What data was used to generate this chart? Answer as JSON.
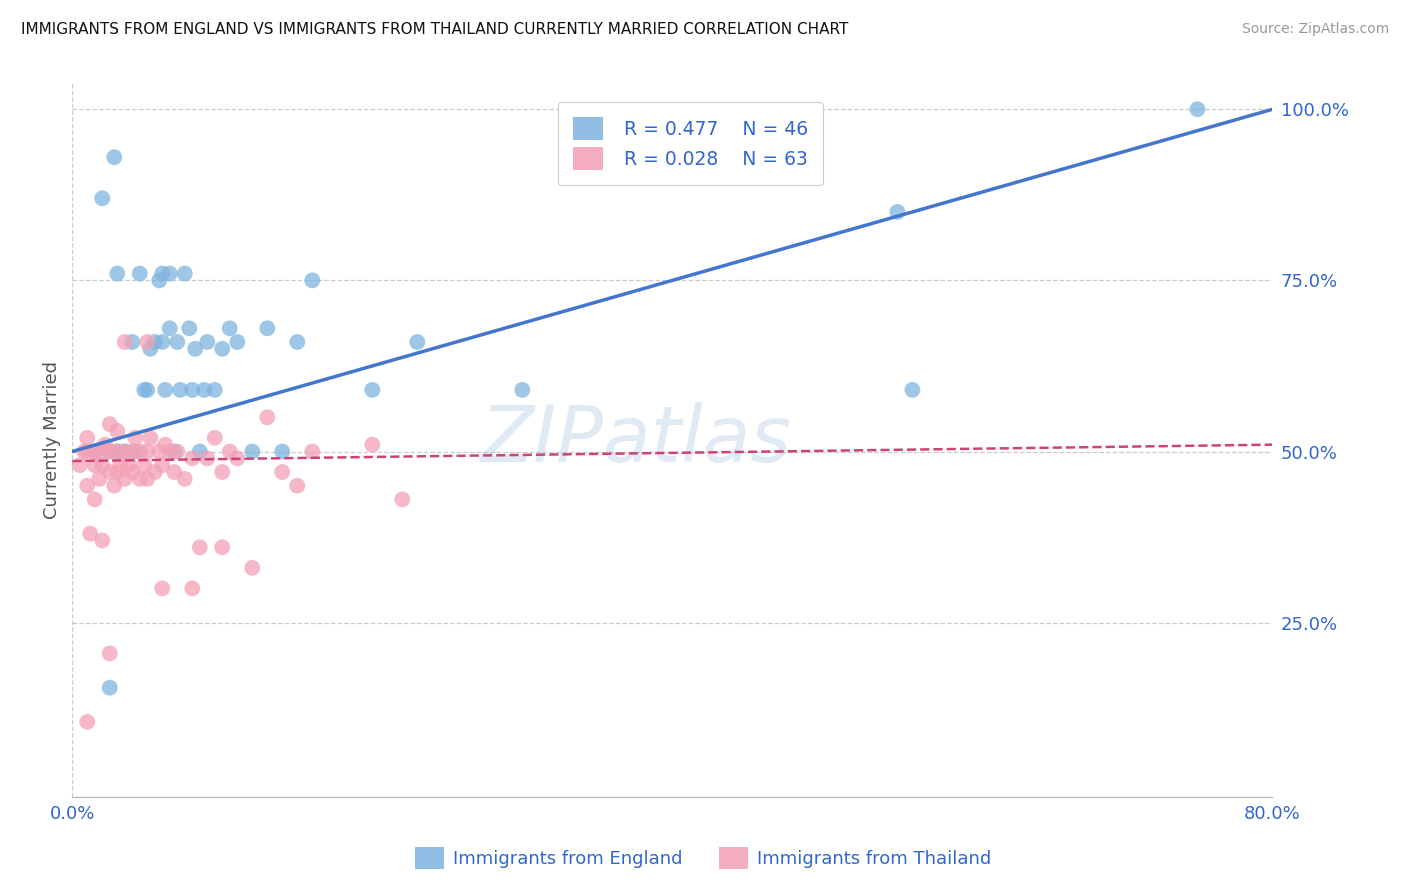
{
  "title": "IMMIGRANTS FROM ENGLAND VS IMMIGRANTS FROM THAILAND CURRENTLY MARRIED CORRELATION CHART",
  "source": "Source: ZipAtlas.com",
  "ylabel": "Currently Married",
  "legend_england_label": "Immigrants from England",
  "legend_thailand_label": "Immigrants from Thailand",
  "legend_england_R": "R = 0.477",
  "legend_england_N": "N = 46",
  "legend_thailand_R": "R = 0.028",
  "legend_thailand_N": "N = 63",
  "england_color": "#7EB3E0",
  "thailand_color": "#F4A0B5",
  "england_line_color": "#4477CC",
  "thailand_line_color": "#CC4477",
  "watermark": "ZIPatlas",
  "xlim": [
    0.0,
    0.8
  ],
  "ylim": [
    0.0,
    1.04
  ],
  "england_scatter_x": [
    0.015,
    0.02,
    0.025,
    0.028,
    0.03,
    0.03,
    0.035,
    0.04,
    0.042,
    0.045,
    0.048,
    0.05,
    0.052,
    0.055,
    0.058,
    0.06,
    0.06,
    0.062,
    0.065,
    0.065,
    0.068,
    0.07,
    0.072,
    0.075,
    0.078,
    0.08,
    0.082,
    0.085,
    0.088,
    0.09,
    0.095,
    0.1,
    0.105,
    0.11,
    0.12,
    0.13,
    0.14,
    0.15,
    0.16,
    0.2,
    0.23,
    0.3,
    0.55,
    0.56,
    0.75,
    0.025
  ],
  "england_scatter_y": [
    0.5,
    0.87,
    0.5,
    0.93,
    0.76,
    0.5,
    0.5,
    0.66,
    0.5,
    0.76,
    0.59,
    0.59,
    0.65,
    0.66,
    0.75,
    0.66,
    0.76,
    0.59,
    0.68,
    0.76,
    0.5,
    0.66,
    0.59,
    0.76,
    0.68,
    0.59,
    0.65,
    0.5,
    0.59,
    0.66,
    0.59,
    0.65,
    0.68,
    0.66,
    0.5,
    0.68,
    0.5,
    0.66,
    0.75,
    0.59,
    0.66,
    0.59,
    0.85,
    0.59,
    1.0,
    0.155
  ],
  "thailand_scatter_x": [
    0.005,
    0.008,
    0.01,
    0.01,
    0.01,
    0.012,
    0.015,
    0.015,
    0.015,
    0.018,
    0.02,
    0.02,
    0.02,
    0.022,
    0.025,
    0.025,
    0.025,
    0.028,
    0.03,
    0.03,
    0.03,
    0.032,
    0.035,
    0.035,
    0.038,
    0.04,
    0.04,
    0.042,
    0.045,
    0.045,
    0.048,
    0.05,
    0.05,
    0.052,
    0.055,
    0.058,
    0.06,
    0.062,
    0.065,
    0.068,
    0.07,
    0.075,
    0.08,
    0.085,
    0.09,
    0.095,
    0.1,
    0.105,
    0.11,
    0.12,
    0.13,
    0.14,
    0.15,
    0.16,
    0.2,
    0.22,
    0.01,
    0.025,
    0.035,
    0.05,
    0.06,
    0.08,
    0.1
  ],
  "thailand_scatter_y": [
    0.48,
    0.5,
    0.5,
    0.52,
    0.45,
    0.38,
    0.48,
    0.5,
    0.43,
    0.46,
    0.48,
    0.5,
    0.37,
    0.51,
    0.47,
    0.5,
    0.54,
    0.45,
    0.47,
    0.5,
    0.53,
    0.48,
    0.46,
    0.5,
    0.48,
    0.47,
    0.5,
    0.52,
    0.46,
    0.5,
    0.48,
    0.46,
    0.5,
    0.52,
    0.47,
    0.5,
    0.48,
    0.51,
    0.5,
    0.47,
    0.5,
    0.46,
    0.49,
    0.36,
    0.49,
    0.52,
    0.47,
    0.5,
    0.49,
    0.33,
    0.55,
    0.47,
    0.45,
    0.5,
    0.51,
    0.43,
    0.105,
    0.205,
    0.66,
    0.66,
    0.3,
    0.3,
    0.36
  ],
  "eng_trendline_x0": 0.0,
  "eng_trendline_y0": 0.5,
  "eng_trendline_x1": 0.8,
  "eng_trendline_y1": 1.0,
  "thai_trendline_x0": 0.0,
  "thai_trendline_y0": 0.486,
  "thai_trendline_x1": 0.8,
  "thai_trendline_y1": 0.51
}
